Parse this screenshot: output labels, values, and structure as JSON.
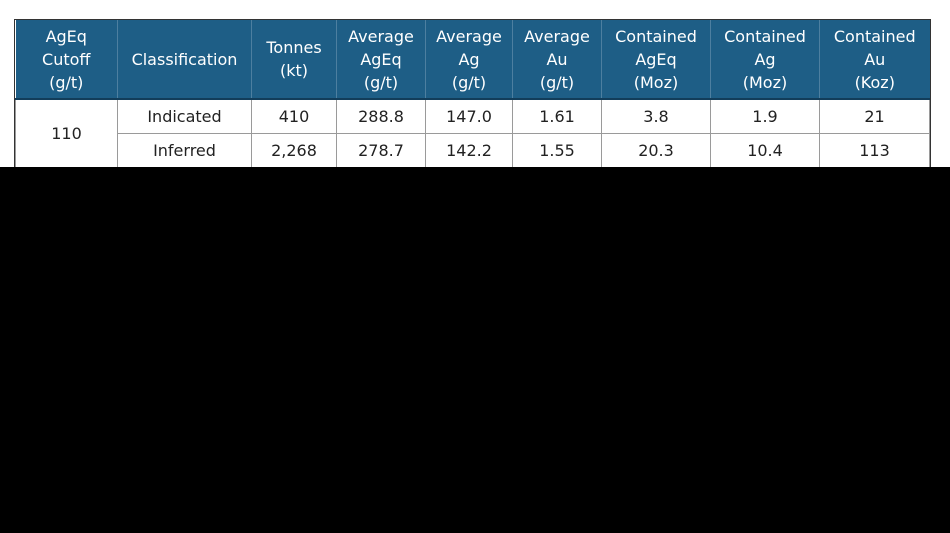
{
  "table": {
    "header": [
      [
        "AgEq",
        "Cutoff",
        "(g/t)"
      ],
      [
        "Classification"
      ],
      [
        "Tonnes",
        "(kt)"
      ],
      [
        "Average",
        "AgEq",
        "(g/t)"
      ],
      [
        "Average",
        "Ag",
        "(g/t)"
      ],
      [
        "Average",
        "Au",
        "(g/t)"
      ],
      [
        "Contained",
        "AgEq",
        "(Moz)"
      ],
      [
        "Contained",
        "Ag",
        "(Moz)"
      ],
      [
        "Contained",
        "Au",
        "(Koz)"
      ]
    ],
    "cutoff": "110",
    "rows": [
      [
        "Indicated",
        "410",
        "288.8",
        "147.0",
        "1.61",
        "3.8",
        "1.9",
        "21"
      ],
      [
        "Inferred",
        "2,268",
        "278.7",
        "142.2",
        "1.55",
        "20.3",
        "10.4",
        "113"
      ]
    ]
  }
}
